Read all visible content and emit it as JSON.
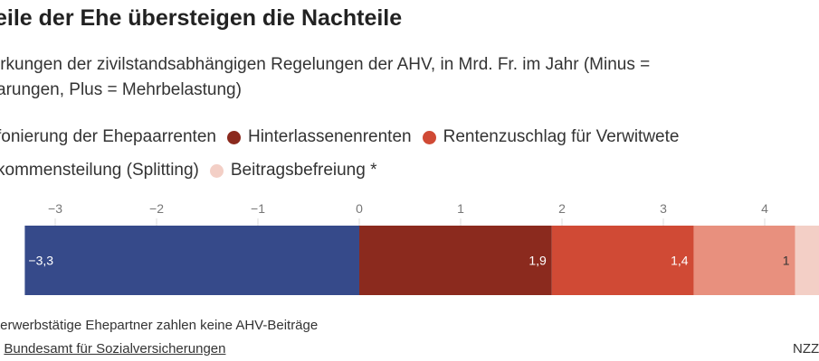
{
  "title": "eile der Ehe übersteigen die Nachteile",
  "subtitle_lines": [
    "irkungen der zivilstandsabhängigen Regelungen der AHV, in Mrd. Fr. im Jahr (Minus =",
    "arungen, Plus = Mehrbelastung)"
  ],
  "legend": [
    {
      "label": "fonierung der Ehepaarrenten",
      "color": "#364a8a"
    },
    {
      "label": "Hinterlassenenrenten",
      "color": "#8b2a1e"
    },
    {
      "label": "Rentenzuschlag für Verwitwete",
      "color": "#d04a35"
    },
    {
      "label": "kommensteilung (Splitting)",
      "color": "#e8907e"
    },
    {
      "label": "Beitragsbefreiung *",
      "color": "#f3cfc6"
    }
  ],
  "footnote": "terwerbstätige Ehepartner zahlen keine AHV-Beiträge",
  "source_prefix": ":",
  "source_link": "Bundesamt für Sozialversicherungen",
  "brand": "NZZ",
  "chart_data": {
    "type": "bar",
    "orientation": "horizontal-stacked",
    "xlim": [
      -3.3,
      4.5
    ],
    "ticks": [
      "−3",
      "−2",
      "−1",
      "0",
      "1",
      "2",
      "3",
      "4"
    ],
    "tick_values": [
      -3,
      -2,
      -1,
      0,
      1,
      2,
      3,
      4
    ],
    "segments": [
      {
        "value": -3.3,
        "label": "−3,3",
        "color": "#364a8a"
      },
      {
        "value": 1.9,
        "label": "1,9",
        "color": "#8b2a1e"
      },
      {
        "value": 1.4,
        "label": "1,4",
        "color": "#d04a35"
      },
      {
        "value": 1.0,
        "label": "1",
        "color": "#e8907e"
      },
      {
        "value": null,
        "label": "",
        "color": "#f3cfc6"
      }
    ]
  }
}
